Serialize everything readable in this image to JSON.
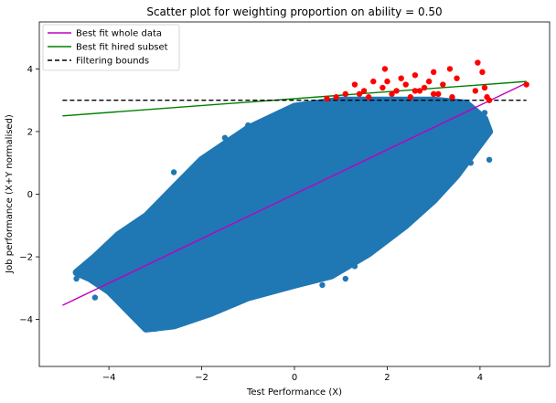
{
  "chart_data": {
    "type": "scatter",
    "title": "Scatter plot for weighting proportion on ability = 0.50",
    "xlabel": "Test Performance (X)",
    "ylabel": "Job performance (X+Y normalised)",
    "xlim": [
      -5.5,
      5.5
    ],
    "ylim": [
      -5.5,
      5.5
    ],
    "x_ticks": [
      -4,
      -2,
      0,
      2,
      4
    ],
    "y_ticks": [
      -4,
      -2,
      0,
      2,
      4
    ],
    "x_tick_labels": [
      "−4",
      "−2",
      "0",
      "2",
      "4"
    ],
    "y_tick_labels": [
      "−4",
      "−2",
      "0",
      "2",
      "4"
    ],
    "grid": false,
    "legend_position": "top-left",
    "colors": {
      "whole_data_points": "#1f77b4",
      "hired_points": "#ff0000",
      "best_fit_whole": "#bf00bf",
      "best_fit_hired": "#008000",
      "filtering_bounds": "#000000"
    },
    "lines": [
      {
        "name": "Best fit whole data",
        "x": [
          -5,
          5
        ],
        "y": [
          -3.55,
          3.55
        ]
      },
      {
        "name": "Best fit hired subset",
        "x": [
          -5,
          5
        ],
        "y": [
          2.5,
          3.6
        ]
      },
      {
        "name": "Filtering bounds",
        "x": [
          -5,
          5
        ],
        "y": [
          3.0,
          3.0
        ],
        "style": "dashed"
      }
    ],
    "cloud_outline": [
      [
        -4.7,
        -2.5
      ],
      [
        -4.4,
        -2.7
      ],
      [
        -4.0,
        -3.1
      ],
      [
        -3.6,
        -3.7
      ],
      [
        -3.2,
        -4.3
      ],
      [
        -2.6,
        -4.2
      ],
      [
        -1.8,
        -3.8
      ],
      [
        -1.0,
        -3.3
      ],
      [
        0.0,
        -2.9
      ],
      [
        0.8,
        -2.6
      ],
      [
        1.6,
        -1.9
      ],
      [
        2.4,
        -1.0
      ],
      [
        3.0,
        -0.2
      ],
      [
        3.5,
        0.6
      ],
      [
        3.9,
        1.4
      ],
      [
        4.2,
        2.0
      ],
      [
        4.1,
        2.4
      ],
      [
        3.7,
        2.9
      ],
      [
        3.0,
        3.0
      ],
      [
        2.0,
        3.0
      ],
      [
        1.0,
        3.0
      ],
      [
        0.0,
        2.8
      ],
      [
        -1.0,
        2.1
      ],
      [
        -2.0,
        1.1
      ],
      [
        -2.6,
        0.2
      ],
      [
        -3.2,
        -0.7
      ],
      [
        -3.8,
        -1.3
      ],
      [
        -4.3,
        -2.0
      ]
    ],
    "whole_data_extra_points": [
      [
        -4.7,
        -2.7
      ],
      [
        -4.3,
        -3.3
      ],
      [
        -4.1,
        -2.4
      ],
      [
        -3.9,
        -1.9
      ],
      [
        -3.5,
        -3.8
      ],
      [
        -3.3,
        -4.1
      ],
      [
        -3.0,
        -4.3
      ],
      [
        -2.8,
        -3.9
      ],
      [
        -2.6,
        0.7
      ],
      [
        -2.2,
        0.7
      ],
      [
        -2.0,
        0.9
      ],
      [
        -1.6,
        1.5
      ],
      [
        -1.5,
        1.8
      ],
      [
        -1.0,
        2.2
      ],
      [
        -0.6,
        2.4
      ],
      [
        0.6,
        -2.9
      ],
      [
        1.1,
        -2.7
      ],
      [
        1.3,
        -2.3
      ],
      [
        1.6,
        -1.6
      ],
      [
        2.0,
        -1.3
      ],
      [
        2.4,
        -0.8
      ],
      [
        2.9,
        -0.1
      ],
      [
        3.3,
        0.3
      ],
      [
        3.5,
        1.2
      ],
      [
        3.7,
        1.6
      ],
      [
        3.8,
        1.0
      ],
      [
        4.2,
        1.1
      ],
      [
        3.9,
        2.0
      ],
      [
        4.1,
        2.6
      ],
      [
        3.6,
        2.3
      ]
    ],
    "hired_points": [
      [
        0.7,
        3.05
      ],
      [
        0.9,
        3.1
      ],
      [
        1.1,
        3.2
      ],
      [
        1.3,
        3.5
      ],
      [
        1.5,
        3.3
      ],
      [
        1.6,
        3.1
      ],
      [
        1.7,
        3.6
      ],
      [
        1.9,
        3.4
      ],
      [
        1.95,
        4.0
      ],
      [
        2.1,
        3.2
      ],
      [
        2.2,
        3.3
      ],
      [
        2.3,
        3.7
      ],
      [
        2.4,
        3.5
      ],
      [
        2.5,
        3.1
      ],
      [
        2.6,
        3.8
      ],
      [
        2.7,
        3.3
      ],
      [
        2.8,
        3.4
      ],
      [
        2.9,
        3.6
      ],
      [
        3.0,
        3.9
      ],
      [
        3.1,
        3.2
      ],
      [
        3.2,
        3.5
      ],
      [
        3.35,
        4.0
      ],
      [
        3.5,
        3.7
      ],
      [
        3.9,
        3.3
      ],
      [
        3.95,
        4.2
      ],
      [
        4.05,
        3.9
      ],
      [
        4.1,
        3.4
      ],
      [
        4.15,
        3.1
      ],
      [
        4.2,
        3.0
      ],
      [
        5.0,
        3.5
      ],
      [
        1.4,
        3.2
      ],
      [
        2.0,
        3.6
      ],
      [
        2.6,
        3.3
      ],
      [
        3.0,
        3.2
      ],
      [
        3.4,
        3.1
      ]
    ],
    "legend": [
      {
        "label": "Best fit whole data",
        "color": "#bf00bf",
        "style": "solid"
      },
      {
        "label": "Best fit hired subset",
        "color": "#008000",
        "style": "solid"
      },
      {
        "label": "Filtering bounds",
        "color": "#000000",
        "style": "dashed"
      }
    ]
  }
}
